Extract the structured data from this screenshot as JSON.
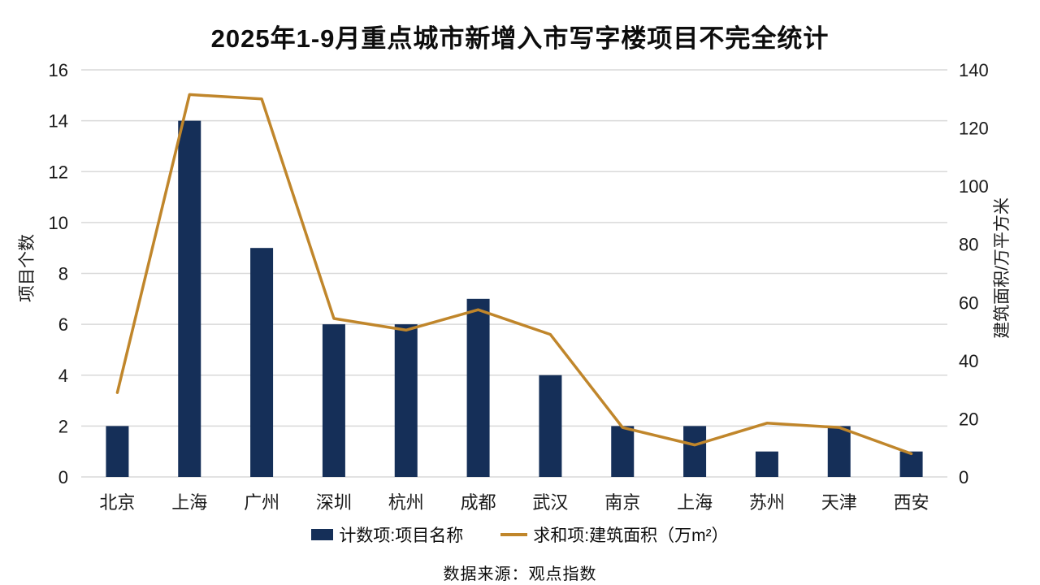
{
  "chart_data": {
    "type": "combo",
    "title": "2025年1-9月重点城市新增入市写字楼项目不完全统计",
    "categories": [
      "北京",
      "上海",
      "广州",
      "深圳",
      "杭州",
      "成都",
      "武汉",
      "南京",
      "上海",
      "苏州",
      "天津",
      "西安"
    ],
    "series": [
      {
        "name": "计数项:项目名称",
        "type": "bar",
        "axis": "left",
        "color": "#152F58",
        "values": [
          2,
          14,
          9,
          6,
          6,
          7,
          4,
          2,
          2,
          1,
          2,
          1
        ]
      },
      {
        "name": "求和项:建筑面积（万m²）",
        "type": "line",
        "axis": "right",
        "color": "#C0862B",
        "values": [
          29,
          131.5,
          130,
          54.5,
          50.5,
          57.5,
          49,
          17,
          11,
          18.5,
          17,
          8
        ]
      }
    ],
    "left_axis": {
      "label": "项目个数",
      "min": 0,
      "max": 16,
      "step": 2
    },
    "right_axis": {
      "label": "建筑面积/万平方米",
      "min": 0,
      "max": 140,
      "step": 20
    },
    "grid": true,
    "legend_position": "bottom",
    "grid_color": "#D9D9D9",
    "text_color": "#1A1A1A"
  },
  "source": "数据来源：观点指数"
}
